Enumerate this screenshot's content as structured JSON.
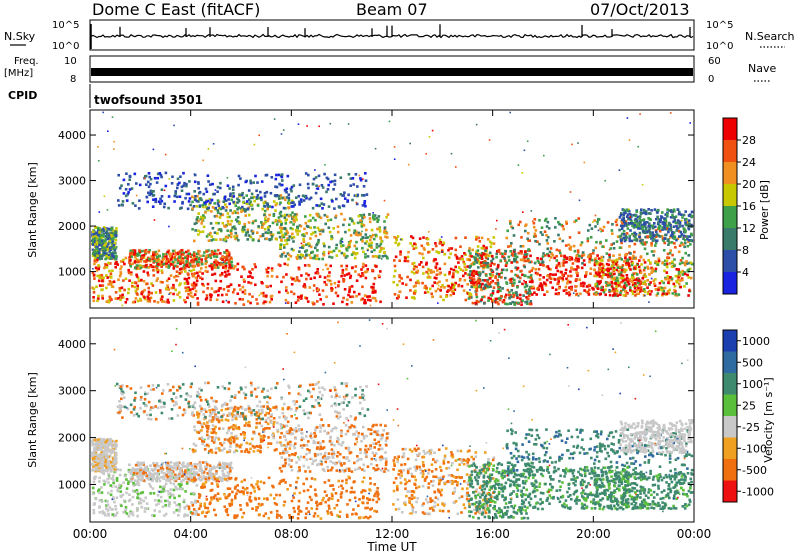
{
  "header": {
    "radar": "Dome C East (fitACF)",
    "beam": "Beam 07",
    "date": "07/Oct/2013"
  },
  "top_panels": {
    "nsky_label": "N.Sky",
    "nsearch_label": "N.Search",
    "noise_ticks": [
      "10^5",
      "10^0"
    ],
    "freq_label": "Freq.",
    "freq_unit": "[MHz]",
    "freq_ticks": [
      "10",
      "8"
    ],
    "nave_label": "Nave",
    "nave_ticks": [
      "60",
      "0"
    ],
    "cpid_label": "CPID",
    "cpid_value": "twofsound 3501"
  },
  "chart_data": [
    {
      "type": "heatmap",
      "name": "power",
      "ylabel": "Slant Range [km]",
      "y_ticks": [
        "1000",
        "2000",
        "3000",
        "4000"
      ],
      "ylim": [
        200,
        4550
      ],
      "xlim": [
        0,
        24
      ],
      "colorbar_label": "Power [dB]",
      "colorbar_ticks": [
        "4",
        "8",
        "12",
        "16",
        "20",
        "24",
        "28"
      ],
      "colors": [
        "#1a23e0",
        "#2e4fa8",
        "#3a7a6a",
        "#3fa04a",
        "#c8c800",
        "#f09020",
        "#f05010",
        "#ee0000"
      ]
    },
    {
      "type": "heatmap",
      "name": "velocity",
      "ylabel": "Slant Range [km]",
      "y_ticks": [
        "1000",
        "2000",
        "3000",
        "4000"
      ],
      "ylim": [
        200,
        4550
      ],
      "xlim": [
        0,
        24
      ],
      "xlabel": "Time UT",
      "x_ticks": [
        "00:00",
        "04:00",
        "08:00",
        "12:00",
        "16:00",
        "20:00",
        "00:00"
      ],
      "colorbar_label": "Velocity [m s⁻¹]",
      "colorbar_ticks": [
        "1000",
        "500",
        "100",
        "25",
        "-25",
        "-100",
        "-500",
        "-1000"
      ],
      "colors": [
        "#1c3fb0",
        "#2f6aa0",
        "#3e8a6e",
        "#5abf3a",
        "#c8c8c8",
        "#f0a020",
        "#f07010",
        "#ee1010"
      ]
    }
  ]
}
